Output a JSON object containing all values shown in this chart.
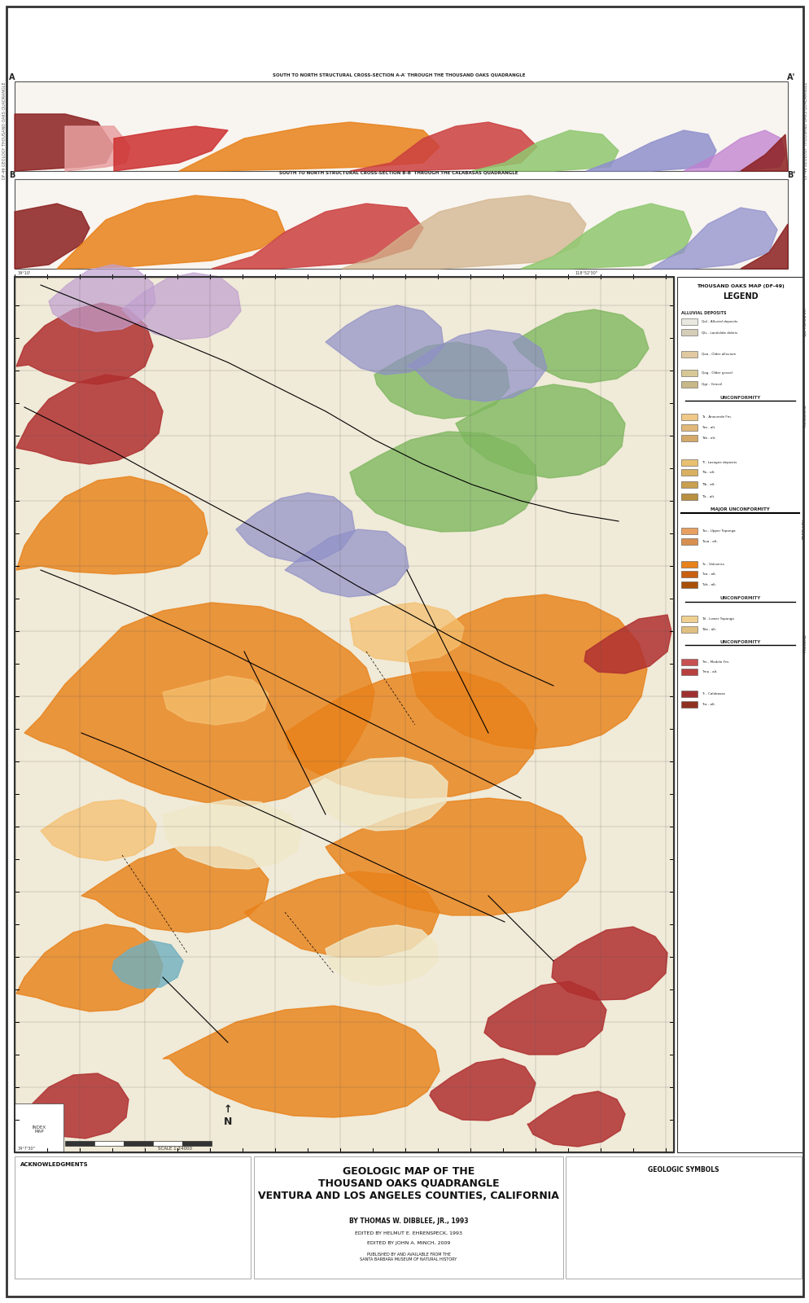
{
  "title_main": "GEOLOGIC MAP OF THE\nTHOUSAND OAKS QUADRANGLE\nVENTURA AND LOS ANGELES COUNTIES, CALIFORNIA",
  "title_author": "BY THOMAS W. DIBBLEE, JR., 1993",
  "title_editor1": "EDITED BY HELMUT E. EHRENSPECK, 1993",
  "title_editor2": "EDITED BY JOHN A. MINCH, 2009",
  "map_title": "THOUSAND OAKS MAP (DF-49)",
  "legend_title": "LEGEND",
  "background_color": "#f5f0e8",
  "border_color": "#333333",
  "map_bg": "#e8dcc8",
  "cross_section_colors": {
    "red_dark": "#8B1A1A",
    "red_medium": "#CD5C5C",
    "pink_light": "#FFB6C1",
    "orange": "#FF8C00",
    "orange_light": "#FFA500",
    "green_light": "#90EE90",
    "blue_light": "#ADD8E6",
    "tan": "#D2B48C"
  },
  "geology_colors": {
    "orange_main": "#E8821A",
    "orange_light": "#F5A050",
    "orange_dark": "#C8601A",
    "red_dark": "#8B2020",
    "red_medium": "#B84040",
    "pink": "#E88080",
    "tan_light": "#E8D8B0",
    "tan_medium": "#C8B890",
    "green_light": "#90C878",
    "green_medium": "#70A858",
    "blue_lavender": "#9090C8",
    "purple_light": "#C0A0D0",
    "blue_light": "#A0B8D8",
    "teal": "#60A090",
    "cream": "#F0E8D0",
    "white_area": "#F8F4EC"
  },
  "page_width": 9.95,
  "page_height": 16.0,
  "dpi": 100
}
